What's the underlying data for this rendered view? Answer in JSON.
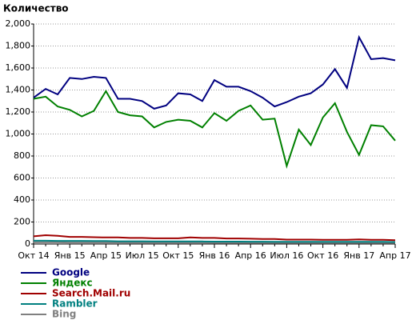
{
  "chart_data": {
    "type": "line",
    "title": "Количество",
    "categories": [
      "Окт 14",
      null,
      null,
      "Янв 15",
      null,
      null,
      "Апр 15",
      null,
      null,
      "Июл 15",
      null,
      null,
      "Окт 15",
      null,
      null,
      "Янв 16",
      null,
      null,
      "Апр 16",
      null,
      null,
      "Июл 16",
      null,
      null,
      "Окт 16",
      null,
      null,
      "Янв 17",
      null,
      null,
      "Апр 17"
    ],
    "ylim": [
      0,
      2000
    ],
    "yticks": [
      0,
      200,
      400,
      600,
      800,
      {
        "value": 1000,
        "label": "1,000"
      },
      {
        "value": 1200,
        "label": "1,200"
      },
      {
        "value": 1400,
        "label": "1,400"
      },
      {
        "value": 1600,
        "label": "1,600"
      },
      {
        "value": 1800,
        "label": "1,800"
      },
      {
        "value": 2000,
        "label": "2,000"
      }
    ],
    "grid": true,
    "series": [
      {
        "name": "Google",
        "color": "#000080",
        "values": [
          1330,
          1410,
          1360,
          1510,
          1500,
          1520,
          1510,
          1320,
          1320,
          1300,
          1230,
          1260,
          1370,
          1360,
          1300,
          1490,
          1430,
          1430,
          1390,
          1330,
          1250,
          1290,
          1340,
          1370,
          1450,
          1590,
          1420,
          1880,
          1680,
          1690,
          1670
        ]
      },
      {
        "name": "Яндекс",
        "color": "#008000",
        "values": [
          1320,
          1340,
          1250,
          1220,
          1160,
          1210,
          1390,
          1200,
          1170,
          1160,
          1060,
          1110,
          1130,
          1120,
          1060,
          1190,
          1120,
          1210,
          1260,
          1130,
          1140,
          710,
          1040,
          900,
          1150,
          1280,
          1020,
          810,
          1080,
          1070,
          940
        ]
      },
      {
        "name": "Search.Mail.ru",
        "color": "#a00000",
        "values": [
          70,
          80,
          75,
          65,
          65,
          62,
          60,
          60,
          55,
          55,
          52,
          52,
          52,
          60,
          55,
          55,
          50,
          50,
          48,
          45,
          45,
          40,
          40,
          40,
          38,
          38,
          38,
          42,
          38,
          38,
          35
        ]
      },
      {
        "name": "Rambler",
        "color": "#008080",
        "values": [
          30,
          30,
          28,
          28,
          28,
          27,
          27,
          25,
          25,
          25,
          24,
          24,
          24,
          23,
          23,
          22,
          22,
          22,
          21,
          21,
          20,
          20,
          20,
          20,
          20,
          20,
          20,
          20,
          20,
          20,
          18
        ]
      },
      {
        "name": "Bing",
        "color": "#808080",
        "values": [
          15,
          15,
          15,
          14,
          14,
          14,
          14,
          14,
          13,
          13,
          13,
          13,
          13,
          13,
          13,
          12,
          12,
          12,
          12,
          12,
          12,
          12,
          12,
          12,
          12,
          12,
          12,
          12,
          12,
          12,
          12
        ]
      }
    ]
  }
}
